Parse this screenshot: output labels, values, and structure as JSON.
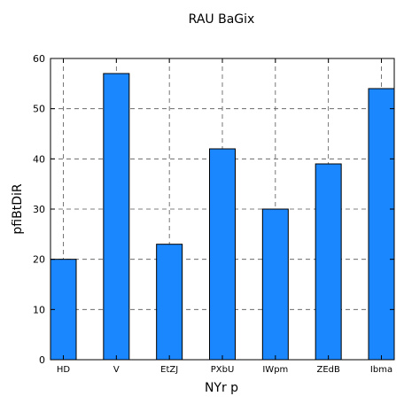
{
  "chart_data": {
    "type": "bar",
    "title": "RAU BaGix",
    "xlabel": "NYr p",
    "ylabel": "pfiBtDiR",
    "categories": [
      "HD",
      "V",
      "EtZJ",
      "PXbU",
      "IWpm",
      "ZEdB",
      "Ibma"
    ],
    "values": [
      20,
      57,
      23,
      42,
      30,
      39,
      54
    ],
    "ylim": [
      0,
      60
    ],
    "yticks": [
      0,
      10,
      20,
      30,
      40,
      50,
      60
    ],
    "grid": true,
    "bar_color": "#1a87ff"
  }
}
